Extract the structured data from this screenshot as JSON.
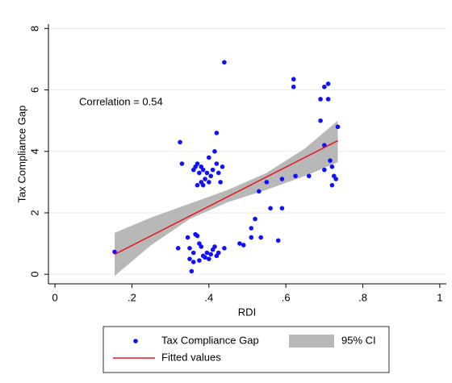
{
  "chart_data": {
    "type": "scatter",
    "annotation": "Correlation = 0.54",
    "x_label": "RDI",
    "y_label": "Tax Compliance Gap",
    "xlim": [
      -0.017,
      1.017
    ],
    "ylim": [
      -0.31,
      8.14
    ],
    "xticks": [
      0,
      {
        "value": 0.2,
        "label": ".2"
      },
      {
        "value": 0.4,
        "label": ".4"
      },
      {
        "value": 0.6,
        "label": ".6"
      },
      {
        "value": 0.8,
        "label": ".8"
      },
      1
    ],
    "yticks": [
      0,
      2,
      4,
      6,
      8
    ],
    "grid": true,
    "series": [
      {
        "name": "Tax Compliance Gap",
        "type": "scatter",
        "color": "#1010ff",
        "x": [
          0.155,
          0.325,
          0.33,
          0.36,
          0.365,
          0.37,
          0.375,
          0.38,
          0.38,
          0.385,
          0.39,
          0.395,
          0.4,
          0.4,
          0.405,
          0.41,
          0.415,
          0.42,
          0.42,
          0.425,
          0.43,
          0.385,
          0.37,
          0.435,
          0.32,
          0.345,
          0.35,
          0.355,
          0.36,
          0.365,
          0.37,
          0.375,
          0.38,
          0.385,
          0.39,
          0.395,
          0.4,
          0.405,
          0.41,
          0.415,
          0.42,
          0.425,
          0.44,
          0.36,
          0.375,
          0.35,
          0.44,
          0.48,
          0.49,
          0.51,
          0.51,
          0.52,
          0.53,
          0.535,
          0.56,
          0.58,
          0.59,
          0.59,
          0.55,
          0.62,
          0.62,
          0.625,
          0.66,
          0.69,
          0.69,
          0.7,
          0.71,
          0.71,
          0.7,
          0.72,
          0.72,
          0.725,
          0.73,
          0.735,
          0.715,
          0.7
        ],
        "values": [
          0.73,
          4.3,
          3.6,
          3.4,
          3.5,
          3.6,
          3.3,
          3.5,
          3.0,
          2.9,
          3.1,
          3.3,
          3.0,
          3.8,
          3.2,
          3.4,
          4.0,
          4.6,
          3.6,
          3.3,
          3.0,
          3.4,
          2.9,
          3.5,
          0.85,
          1.2,
          0.5,
          0.1,
          0.7,
          1.3,
          1.25,
          0.45,
          0.9,
          0.6,
          0.55,
          0.7,
          0.5,
          0.65,
          0.8,
          0.9,
          0.6,
          0.7,
          0.85,
          0.4,
          1.0,
          0.85,
          6.9,
          1.0,
          0.95,
          1.5,
          1.2,
          1.8,
          2.7,
          1.2,
          2.15,
          1.1,
          2.15,
          3.1,
          3.0,
          6.35,
          6.1,
          3.2,
          3.2,
          5.0,
          5.7,
          6.1,
          6.2,
          5.7,
          3.4,
          2.9,
          3.5,
          3.2,
          3.1,
          4.8,
          3.7,
          4.2
        ]
      },
      {
        "name": "95% CI",
        "type": "area",
        "color": "#b8b8b8",
        "x": [
          0.155,
          0.25,
          0.35,
          0.45,
          0.55,
          0.65,
          0.735
        ],
        "lower": [
          -0.05,
          0.95,
          1.8,
          2.35,
          2.75,
          3.2,
          3.65
        ],
        "upper": [
          1.35,
          1.85,
          2.3,
          2.75,
          3.3,
          4.1,
          5.0
        ]
      },
      {
        "name": "Fitted values",
        "type": "line",
        "color": "#e8141c",
        "x": [
          0.155,
          0.735
        ],
        "values": [
          0.65,
          4.35
        ]
      }
    ]
  }
}
